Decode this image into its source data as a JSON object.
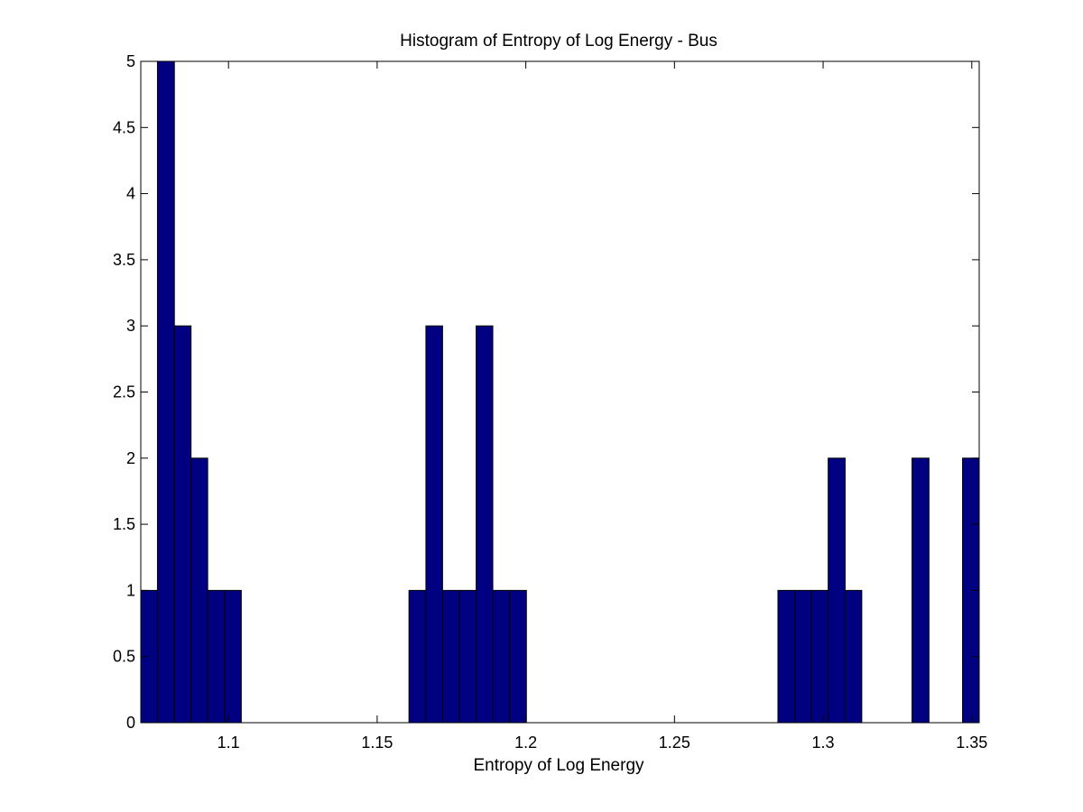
{
  "chart_data": {
    "type": "bar",
    "title": "Histogram of Entropy of Log Energy - Bus",
    "xlabel": "Entropy of Log Energy",
    "ylabel": "",
    "xlim": [
      1.0705,
      1.3525
    ],
    "ylim": [
      0,
      5
    ],
    "bar_color": "#000080",
    "edge_color": "#000000",
    "grid": false,
    "xticks": [
      1.1,
      1.15,
      1.2,
      1.25,
      1.3,
      1.35
    ],
    "xtick_labels": [
      "1.1",
      "1.15",
      "1.2",
      "1.25",
      "1.3",
      "1.35"
    ],
    "yticks": [
      0,
      0.5,
      1,
      1.5,
      2,
      2.5,
      3,
      3.5,
      4,
      4.5,
      5
    ],
    "ytick_labels": [
      "0",
      "0.5",
      "1",
      "1.5",
      "2",
      "2.5",
      "3",
      "3.5",
      "4",
      "4.5",
      "5"
    ],
    "bins": [
      {
        "x0": 1.0705,
        "x1": 1.0761,
        "count": 1
      },
      {
        "x0": 1.0761,
        "x1": 1.0818,
        "count": 5
      },
      {
        "x0": 1.0818,
        "x1": 1.0874,
        "count": 3
      },
      {
        "x0": 1.0874,
        "x1": 1.093,
        "count": 2
      },
      {
        "x0": 1.093,
        "x1": 1.0987,
        "count": 1
      },
      {
        "x0": 1.0987,
        "x1": 1.1043,
        "count": 1
      },
      {
        "x0": 1.1607,
        "x1": 1.1664,
        "count": 1
      },
      {
        "x0": 1.1664,
        "x1": 1.172,
        "count": 3
      },
      {
        "x0": 1.172,
        "x1": 1.1777,
        "count": 1
      },
      {
        "x0": 1.1777,
        "x1": 1.1833,
        "count": 1
      },
      {
        "x0": 1.1833,
        "x1": 1.1889,
        "count": 3
      },
      {
        "x0": 1.1889,
        "x1": 1.1946,
        "count": 1
      },
      {
        "x0": 1.1946,
        "x1": 1.2002,
        "count": 1
      },
      {
        "x0": 1.2848,
        "x1": 1.2905,
        "count": 1
      },
      {
        "x0": 1.2905,
        "x1": 1.2961,
        "count": 1
      },
      {
        "x0": 1.2961,
        "x1": 1.3017,
        "count": 1
      },
      {
        "x0": 1.3017,
        "x1": 1.3074,
        "count": 2
      },
      {
        "x0": 1.3074,
        "x1": 1.313,
        "count": 1
      },
      {
        "x0": 1.3299,
        "x1": 1.3356,
        "count": 2
      },
      {
        "x0": 1.3469,
        "x1": 1.3525,
        "count": 2
      }
    ]
  }
}
